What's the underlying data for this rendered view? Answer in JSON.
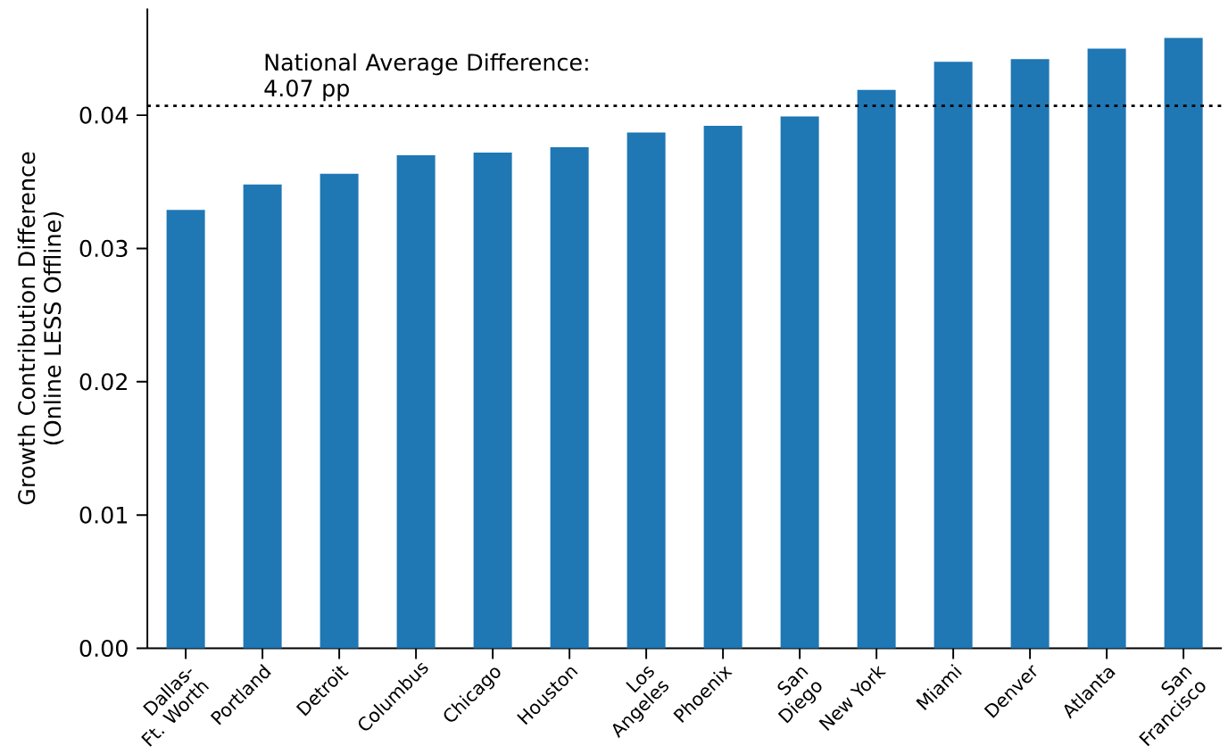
{
  "chart_data": {
    "type": "bar",
    "categories": [
      "Dallas-Ft. Worth",
      "Portland",
      "Detroit",
      "Columbus",
      "Chicago",
      "Houston",
      "Los Angeles",
      "Phoenix",
      "San Diego",
      "New York",
      "Miami",
      "Denver",
      "Atlanta",
      "San Francisco"
    ],
    "values": [
      0.0329,
      0.0348,
      0.0356,
      0.037,
      0.0372,
      0.0376,
      0.0387,
      0.0392,
      0.0399,
      0.0419,
      0.044,
      0.0442,
      0.045,
      0.0458
    ],
    "color": "#1f77b4",
    "ylabel": "Growth Contribution Difference (Online LESS Offline)",
    "ylim": [
      0,
      0.048
    ],
    "yticks": [
      {
        "value": 0,
        "label": "0.00"
      },
      {
        "value": 0.01,
        "label": "0.01"
      },
      {
        "value": 0.02,
        "label": "0.02"
      },
      {
        "value": 0.03,
        "label": "0.03"
      },
      {
        "value": 0.04,
        "label": "0.04"
      }
    ],
    "ref_lines": [
      {
        "axis": "y",
        "value": 0.0407,
        "label": "National Average Difference: 4.07 pp",
        "line_style": "dotted",
        "color": "#000000"
      }
    ]
  }
}
